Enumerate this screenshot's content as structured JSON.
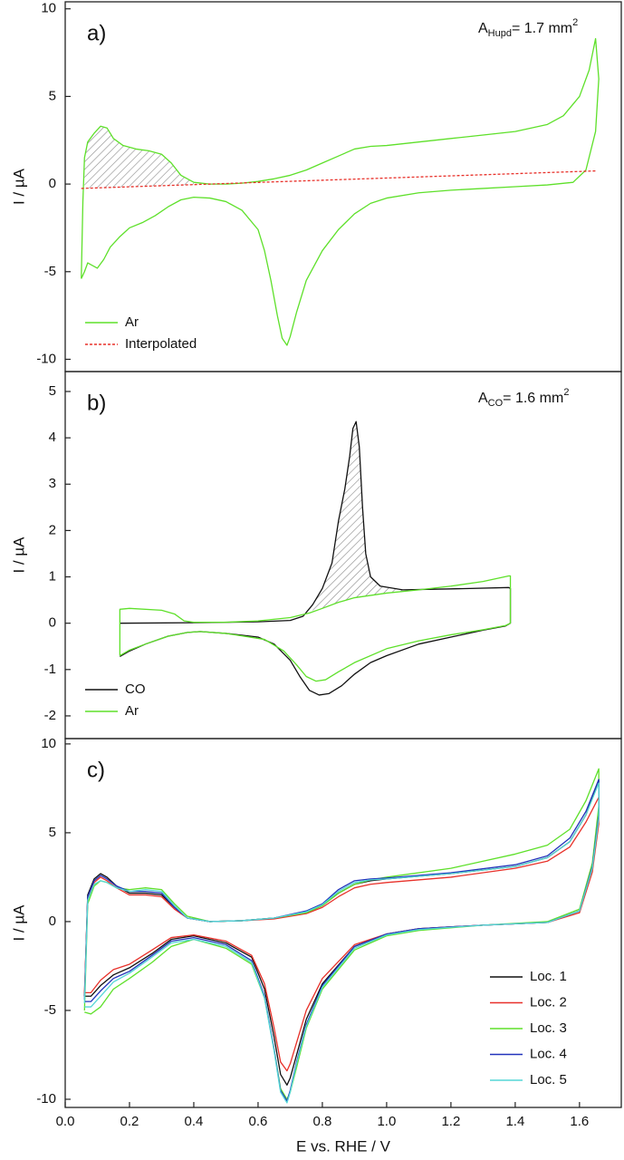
{
  "chart_data": [
    {
      "type": "line",
      "annotations": [
        {
          "text": "a)"
        },
        {
          "text": "A",
          "sub": "Hupd",
          "after": "= 1.7 mm",
          "sup": "2"
        }
      ],
      "y_label": "I / µA",
      "xlim": [
        0,
        1.73
      ],
      "ylim": [
        -10.7,
        10.4
      ],
      "yticks": [
        -10,
        -5,
        0,
        5,
        10
      ],
      "legend": "lower left",
      "hatch": true,
      "series": [
        {
          "name": "Ar",
          "color": "#5ee02a",
          "x": [
            0.05,
            0.055,
            0.06,
            0.07,
            0.09,
            0.11,
            0.13,
            0.15,
            0.18,
            0.22,
            0.26,
            0.3,
            0.33,
            0.36,
            0.4,
            0.45,
            0.5,
            0.55,
            0.6,
            0.65,
            0.7,
            0.75,
            0.8,
            0.85,
            0.9,
            0.95,
            1.0,
            1.1,
            1.2,
            1.3,
            1.4,
            1.5,
            1.55,
            1.6,
            1.63,
            1.65,
            1.66,
            1.65,
            1.62,
            1.58,
            1.5,
            1.4,
            1.3,
            1.2,
            1.1,
            1.0,
            0.95,
            0.9,
            0.85,
            0.8,
            0.75,
            0.72,
            0.7,
            0.69,
            0.675,
            0.66,
            0.64,
            0.62,
            0.6,
            0.55,
            0.5,
            0.45,
            0.4,
            0.36,
            0.32,
            0.28,
            0.24,
            0.2,
            0.17,
            0.14,
            0.12,
            0.1,
            0.08,
            0.07,
            0.06,
            0.05
          ],
          "values": [
            -5.4,
            -1.0,
            1.5,
            2.4,
            2.9,
            3.3,
            3.2,
            2.6,
            2.2,
            2.0,
            1.9,
            1.7,
            1.2,
            0.5,
            0.1,
            0.0,
            0.0,
            0.05,
            0.15,
            0.3,
            0.5,
            0.8,
            1.2,
            1.6,
            2.0,
            2.15,
            2.2,
            2.4,
            2.6,
            2.8,
            3.0,
            3.4,
            3.9,
            5.0,
            6.5,
            8.3,
            6.0,
            3.0,
            0.8,
            0.1,
            -0.05,
            -0.15,
            -0.25,
            -0.35,
            -0.5,
            -0.8,
            -1.1,
            -1.7,
            -2.6,
            -3.8,
            -5.5,
            -7.3,
            -8.7,
            -9.2,
            -8.8,
            -7.5,
            -5.5,
            -3.8,
            -2.6,
            -1.5,
            -1.0,
            -0.8,
            -0.75,
            -0.9,
            -1.3,
            -1.8,
            -2.2,
            -2.5,
            -3.0,
            -3.6,
            -4.3,
            -4.8,
            -4.6,
            -4.5,
            -5.0,
            -5.4
          ]
        },
        {
          "name": "Interpolated",
          "color": "#e8312a",
          "dash": true,
          "x": [
            0.05,
            1.65
          ],
          "values": [
            -0.25,
            0.75
          ]
        }
      ]
    },
    {
      "type": "line",
      "annotations": [
        {
          "text": "b)"
        },
        {
          "text": "A",
          "sub": "CO",
          "after": "= 1.6 mm",
          "sup": "2"
        }
      ],
      "y_label": "I / µA",
      "xlim": [
        0,
        1.73
      ],
      "ylim": [
        -2.49,
        5.43
      ],
      "yticks": [
        -2,
        -1,
        0,
        1,
        2,
        3,
        4,
        5
      ],
      "legend": "lower left",
      "hatch": true,
      "series": [
        {
          "name": "CO",
          "color": "#111111",
          "x": [
            0.17,
            0.4,
            0.6,
            0.7,
            0.74,
            0.77,
            0.8,
            0.83,
            0.85,
            0.87,
            0.885,
            0.895,
            0.905,
            0.915,
            0.925,
            0.935,
            0.95,
            0.98,
            1.05,
            1.2,
            1.38,
            1.385,
            1.385,
            1.37,
            1.3,
            1.2,
            1.1,
            1.0,
            0.95,
            0.9,
            0.86,
            0.82,
            0.79,
            0.76,
            0.73,
            0.7,
            0.65,
            0.6,
            0.5,
            0.42,
            0.38,
            0.32,
            0.25,
            0.2,
            0.17
          ],
          "values": [
            0,
            0.01,
            0.03,
            0.06,
            0.15,
            0.4,
            0.75,
            1.3,
            2.2,
            2.9,
            3.6,
            4.2,
            4.35,
            3.8,
            2.5,
            1.5,
            1.0,
            0.8,
            0.72,
            0.74,
            0.77,
            0.75,
            0.0,
            -0.06,
            -0.15,
            -0.3,
            -0.45,
            -0.7,
            -0.85,
            -1.1,
            -1.35,
            -1.52,
            -1.55,
            -1.45,
            -1.15,
            -0.8,
            -0.45,
            -0.3,
            -0.22,
            -0.18,
            -0.2,
            -0.28,
            -0.45,
            -0.6,
            -0.72
          ]
        },
        {
          "name": "Ar",
          "color": "#5ee02a",
          "x": [
            0.17,
            0.17,
            0.2,
            0.3,
            0.34,
            0.37,
            0.4,
            0.5,
            0.6,
            0.7,
            0.76,
            0.8,
            0.85,
            0.9,
            1.0,
            1.1,
            1.2,
            1.3,
            1.38,
            1.385,
            1.385,
            1.37,
            1.3,
            1.2,
            1.1,
            1.0,
            0.9,
            0.85,
            0.81,
            0.78,
            0.75,
            0.72,
            0.68,
            0.62,
            0.5,
            0.42,
            0.38,
            0.32,
            0.25,
            0.2,
            0.17
          ],
          "values": [
            -0.7,
            0.3,
            0.32,
            0.28,
            0.2,
            0.05,
            0.02,
            0.02,
            0.05,
            0.12,
            0.22,
            0.32,
            0.45,
            0.55,
            0.65,
            0.72,
            0.8,
            0.9,
            1.02,
            1.02,
            0.0,
            -0.05,
            -0.14,
            -0.25,
            -0.38,
            -0.55,
            -0.85,
            -1.05,
            -1.22,
            -1.25,
            -1.15,
            -0.9,
            -0.6,
            -0.35,
            -0.22,
            -0.18,
            -0.2,
            -0.28,
            -0.45,
            -0.58,
            -0.7
          ]
        }
      ]
    },
    {
      "type": "line",
      "annotations": [
        {
          "text": "c)"
        }
      ],
      "y_label": "I / µA",
      "x_label": "E vs. RHE / V",
      "xlim": [
        0,
        1.73
      ],
      "ylim": [
        -10.46,
        10.3
      ],
      "yticks": [
        -10,
        -5,
        0,
        5,
        10
      ],
      "xticks": [
        {
          "value": 0,
          "label": "0.0"
        },
        0.2,
        0.4,
        0.6,
        0.8,
        {
          "value": 1,
          "label": "1.0"
        },
        1.2,
        1.4,
        1.6
      ],
      "legend": "lower right",
      "x": [
        0.06,
        0.07,
        0.09,
        0.11,
        0.13,
        0.16,
        0.2,
        0.25,
        0.3,
        0.34,
        0.38,
        0.45,
        0.55,
        0.65,
        0.75,
        0.8,
        0.85,
        0.9,
        0.95,
        1.0,
        1.2,
        1.4,
        1.5,
        1.57,
        1.62,
        1.66,
        1.66,
        1.64,
        1.6,
        1.5,
        1.3,
        1.1,
        1.0,
        0.9,
        0.8,
        0.75,
        0.72,
        0.7,
        0.69,
        0.67,
        0.65,
        0.62,
        0.58,
        0.5,
        0.4,
        0.33,
        0.27,
        0.2,
        0.15,
        0.11,
        0.08,
        0.06
      ],
      "series": [
        {
          "name": "Loc. 1",
          "color": "#111111",
          "values": [
            -4.2,
            1.5,
            2.4,
            2.7,
            2.5,
            2.0,
            1.6,
            1.6,
            1.5,
            0.8,
            0.2,
            0.0,
            0.05,
            0.2,
            0.5,
            0.9,
            1.6,
            2.1,
            2.3,
            2.4,
            2.7,
            3.1,
            3.6,
            4.5,
            6.0,
            8.0,
            6.0,
            3.0,
            0.6,
            -0.05,
            -0.2,
            -0.4,
            -0.7,
            -1.4,
            -3.5,
            -5.5,
            -7.5,
            -8.8,
            -9.2,
            -8.6,
            -6.5,
            -3.8,
            -2.0,
            -1.2,
            -0.8,
            -1.0,
            -1.8,
            -2.6,
            -3.0,
            -3.6,
            -4.2,
            -4.2
          ]
        },
        {
          "name": "Loc. 2",
          "color": "#e8312a",
          "values": [
            -4.0,
            1.3,
            2.2,
            2.5,
            2.3,
            1.9,
            1.5,
            1.5,
            1.4,
            0.7,
            0.2,
            0.0,
            0.05,
            0.15,
            0.45,
            0.8,
            1.4,
            1.9,
            2.1,
            2.2,
            2.5,
            3.0,
            3.4,
            4.2,
            5.6,
            7.0,
            5.5,
            2.8,
            0.5,
            -0.05,
            -0.2,
            -0.4,
            -0.7,
            -1.3,
            -3.2,
            -5.0,
            -6.8,
            -8.0,
            -8.4,
            -7.9,
            -6.0,
            -3.5,
            -1.9,
            -1.1,
            -0.75,
            -0.9,
            -1.6,
            -2.4,
            -2.7,
            -3.3,
            -4.0,
            -4.0
          ]
        },
        {
          "name": "Loc. 3",
          "color": "#5ee02a",
          "values": [
            -5.0,
            1.0,
            2.0,
            2.3,
            2.2,
            1.9,
            1.8,
            1.9,
            1.8,
            1.0,
            0.3,
            0.0,
            0.05,
            0.2,
            0.5,
            0.9,
            1.6,
            2.1,
            2.35,
            2.5,
            3.0,
            3.8,
            4.3,
            5.2,
            6.8,
            8.6,
            6.5,
            3.3,
            0.7,
            0.0,
            -0.2,
            -0.5,
            -0.8,
            -1.6,
            -3.8,
            -6.0,
            -8.2,
            -9.6,
            -10.0,
            -9.4,
            -7.2,
            -4.3,
            -2.4,
            -1.5,
            -1.0,
            -1.4,
            -2.3,
            -3.2,
            -3.8,
            -4.8,
            -5.2,
            -5.1
          ]
        },
        {
          "name": "Loc. 4",
          "color": "#2233bb",
          "values": [
            -4.4,
            1.4,
            2.3,
            2.6,
            2.4,
            2.0,
            1.7,
            1.7,
            1.6,
            0.8,
            0.2,
            0.0,
            0.05,
            0.2,
            0.6,
            1.0,
            1.8,
            2.3,
            2.4,
            2.45,
            2.75,
            3.2,
            3.7,
            4.7,
            6.2,
            8.0,
            6.0,
            3.1,
            0.6,
            -0.05,
            -0.2,
            -0.4,
            -0.7,
            -1.4,
            -3.6,
            -5.8,
            -7.9,
            -9.5,
            -10.1,
            -9.5,
            -7.2,
            -4.2,
            -2.2,
            -1.3,
            -0.9,
            -1.1,
            -1.9,
            -2.8,
            -3.2,
            -3.9,
            -4.5,
            -4.5
          ]
        },
        {
          "name": "Loc. 5",
          "color": "#55d6d6",
          "values": [
            -4.6,
            1.2,
            2.1,
            2.3,
            2.2,
            1.9,
            1.7,
            1.8,
            1.7,
            0.9,
            0.2,
            0.0,
            0.05,
            0.2,
            0.55,
            0.95,
            1.7,
            2.2,
            2.35,
            2.4,
            2.7,
            3.1,
            3.6,
            4.5,
            6.0,
            7.8,
            5.8,
            3.0,
            0.6,
            -0.05,
            -0.2,
            -0.45,
            -0.75,
            -1.5,
            -3.7,
            -5.9,
            -8.0,
            -9.6,
            -10.2,
            -9.6,
            -7.3,
            -4.3,
            -2.3,
            -1.4,
            -1.0,
            -1.2,
            -2.0,
            -2.9,
            -3.4,
            -4.2,
            -4.8,
            -4.8
          ]
        }
      ]
    }
  ]
}
